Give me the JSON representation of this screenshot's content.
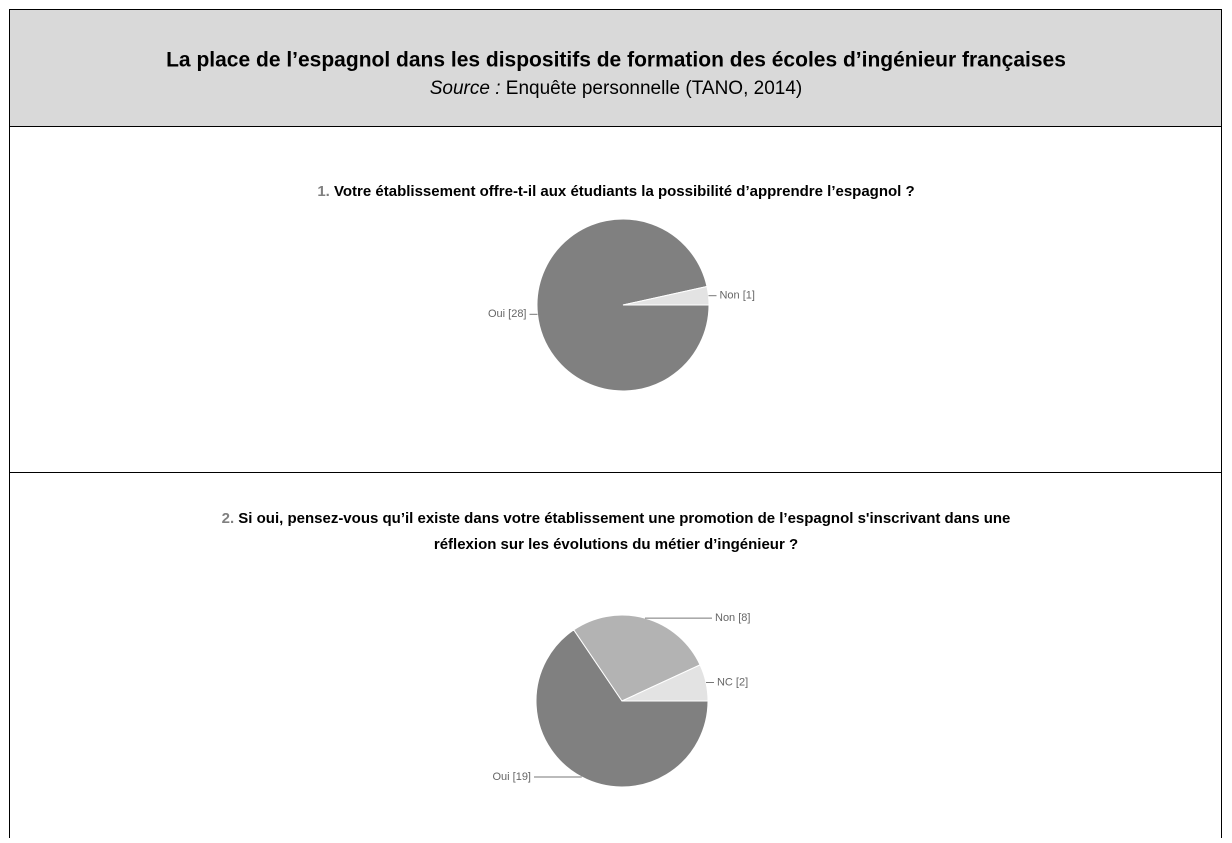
{
  "header": {
    "title": "La place de l’espagnol dans les dispositifs de formation des écoles d’ingénieur françaises",
    "source_label": "Source :",
    "source": "Enquête personnelle (TANO, 2014)"
  },
  "chart_data": [
    {
      "type": "pie",
      "number": "1.",
      "title": "Votre établissement offre-t-il aux étudiants la possibilité d’apprendre l’espagnol ?",
      "values": [
        28,
        1
      ],
      "value_labels": [
        "Oui [28]",
        "Non [1]"
      ],
      "colors": [
        "#808080",
        "#e3e3e3"
      ]
    },
    {
      "type": "pie",
      "number": "2.",
      "title": [
        "Si oui, pensez-vous qu’il existe dans votre établissement une promotion de l’espagnol s'inscrivant dans une",
        "réflexion sur les évolutions du métier d’ingénieur ?"
      ],
      "values": [
        19,
        8,
        2
      ],
      "value_labels": [
        "Oui [19]",
        "Non [8]",
        "NC [2]"
      ],
      "colors": [
        "#808080",
        "#b3b3b3",
        "#e3e3e3"
      ]
    }
  ]
}
